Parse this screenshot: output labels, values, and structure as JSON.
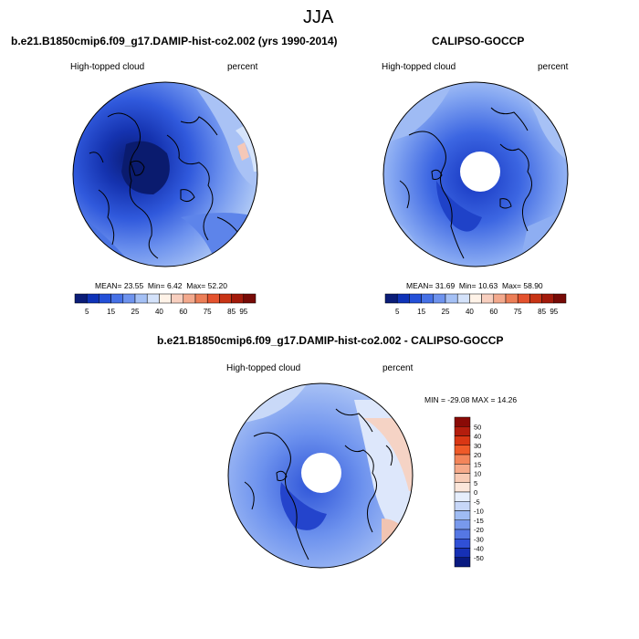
{
  "page_title": "JJA",
  "colors": {
    "dark_blue": "#0a1f8f",
    "mid_blue": "#3a66e0",
    "light_blue": "#8fb0f5",
    "pale_blue": "#cfe0fb",
    "pale_red": "#f7d2c4",
    "red": "#e8502a",
    "dark_red": "#8b0f0f",
    "coast": "#000000"
  },
  "panels": {
    "model": {
      "title": "b.e21.B1850cmip6.f09_g17.DAMIP-hist-co2.002 (yrs 1990-2014)",
      "left_label": "High-topped cloud",
      "right_label": "percent",
      "stats": {
        "mean_label": "MEAN=",
        "mean": "23.55",
        "min_label": "Min=",
        "min": "6.42",
        "max_label": "Max=",
        "max": "52.20"
      }
    },
    "obs": {
      "title": "CALIPSO-GOCCP",
      "left_label": "High-topped cloud",
      "right_label": "percent",
      "stats": {
        "mean_label": "MEAN=",
        "mean": "31.69",
        "min_label": "Min=",
        "min": "10.63",
        "max_label": "Max=",
        "max": "58.90"
      }
    },
    "diff": {
      "title": "b.e21.B1850cmip6.f09_g17.DAMIP-hist-co2.002 - CALIPSO-GOCCP",
      "left_label": "High-topped cloud",
      "right_label": "percent",
      "stats_text": "MIN = -29.08 MAX =  14.26"
    }
  },
  "colorbars": {
    "abs": {
      "colors": [
        "#0b1d78",
        "#0f33b8",
        "#2450d8",
        "#4671e6",
        "#6e93ee",
        "#a4c0f5",
        "#d4e2fa",
        "#fff3e8",
        "#f8cfbf",
        "#f3a98d",
        "#ec7e57",
        "#e4522e",
        "#c83415",
        "#a31a0b",
        "#770a06"
      ],
      "tick_labels": [
        "5",
        "15",
        "25",
        "40",
        "60",
        "75",
        "85",
        "95"
      ]
    },
    "diff": {
      "colors": [
        "#8a0a06",
        "#b41d0d",
        "#d93714",
        "#ef5a28",
        "#f3855a",
        "#f6aa8a",
        "#f8cbb5",
        "#fbe6da",
        "#e6eefc",
        "#c7d7f8",
        "#9fbcf3",
        "#7899ec",
        "#5577e4",
        "#3050d6",
        "#1630b5",
        "#091a80"
      ],
      "tick_labels": [
        "50",
        "40",
        "30",
        "20",
        "15",
        "10",
        "5",
        "0",
        "-5",
        "-10",
        "-15",
        "-20",
        "-30",
        "-40",
        "-50"
      ]
    }
  }
}
